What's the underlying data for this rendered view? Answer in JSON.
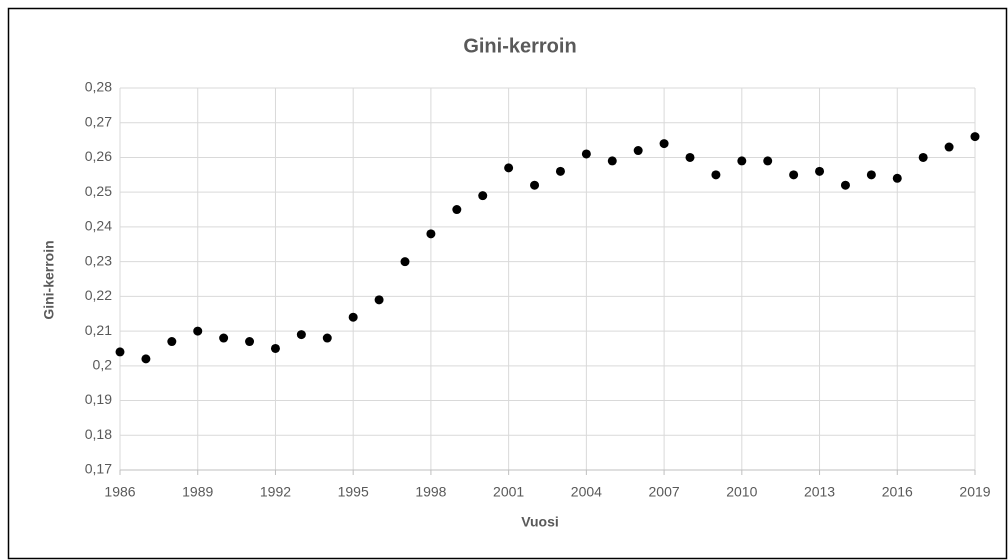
{
  "chart_data": {
    "type": "scatter",
    "title": "Gini-kerroin",
    "xlabel": "Vuosi",
    "ylabel": "Gini-kerroin",
    "x": [
      1986,
      1987,
      1988,
      1989,
      1990,
      1991,
      1992,
      1993,
      1994,
      1995,
      1996,
      1997,
      1998,
      1999,
      2000,
      2001,
      2002,
      2003,
      2004,
      2005,
      2006,
      2007,
      2008,
      2009,
      2010,
      2011,
      2012,
      2013,
      2014,
      2015,
      2016,
      2017,
      2018,
      2019
    ],
    "values": [
      0.204,
      0.202,
      0.207,
      0.21,
      0.208,
      0.207,
      0.205,
      0.209,
      0.208,
      0.214,
      0.219,
      0.23,
      0.238,
      0.245,
      0.249,
      0.257,
      0.252,
      0.256,
      0.261,
      0.259,
      0.262,
      0.264,
      0.26,
      0.255,
      0.259,
      0.259,
      0.255,
      0.256,
      0.252,
      0.255,
      0.254,
      0.26,
      0.263,
      0.266
    ],
    "color": "#000000",
    "xlim": [
      1986,
      2019
    ],
    "xticks": [
      1986,
      1989,
      1992,
      1995,
      1998,
      2001,
      2004,
      2007,
      2010,
      2013,
      2016,
      2019
    ],
    "ylim": [
      0.17,
      0.28
    ],
    "yticks": [
      {
        "value": 0.17,
        "label": "0,17"
      },
      {
        "value": 0.18,
        "label": "0,18"
      },
      {
        "value": 0.19,
        "label": "0,19"
      },
      {
        "value": 0.2,
        "label": "0,2"
      },
      {
        "value": 0.21,
        "label": "0,21"
      },
      {
        "value": 0.22,
        "label": "0,22"
      },
      {
        "value": 0.23,
        "label": "0,23"
      },
      {
        "value": 0.24,
        "label": "0,24"
      },
      {
        "value": 0.25,
        "label": "0,25"
      },
      {
        "value": 0.26,
        "label": "0,26"
      },
      {
        "value": 0.27,
        "label": "0,27"
      },
      {
        "value": 0.28,
        "label": "0,28"
      }
    ],
    "grid": true
  }
}
